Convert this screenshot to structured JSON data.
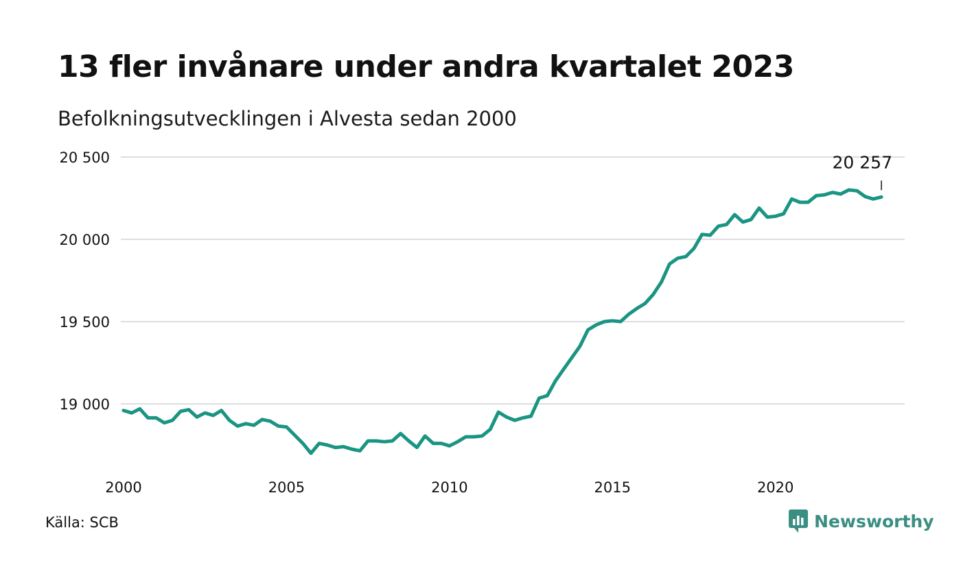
{
  "header": {
    "title": "13 fler invånare under andra kvartalet 2023",
    "subtitle": "Befolkningsutvecklingen i Alvesta sedan 2000"
  },
  "footer": {
    "source": "Källa: SCB",
    "brand": "Newsworthy"
  },
  "colors": {
    "line": "#1a9483",
    "grid": "#dddddd",
    "brand": "#3a8e82"
  },
  "chart_data": {
    "type": "line",
    "title": "13 fler invånare under andra kvartalet 2023",
    "subtitle": "Befolkningsutvecklingen i Alvesta sedan 2000",
    "xlabel": "",
    "ylabel": "",
    "xlim": [
      2000,
      2024.0
    ],
    "ylim": [
      18700,
      20500
    ],
    "x_ticks": [
      2000,
      2005,
      2010,
      2015,
      2020
    ],
    "x_tick_labels": [
      "2000",
      "2005",
      "2010",
      "2015",
      "2020"
    ],
    "y_ticks": [
      19000,
      19500,
      20000,
      20500
    ],
    "y_tick_labels": [
      "19 000",
      "19 500",
      "20 000",
      "20 500"
    ],
    "grid": true,
    "legend": "none",
    "annotation": {
      "label": "20 257",
      "x": 2023.25,
      "y": 20257
    },
    "series": [
      {
        "x": [
          2000.0,
          2000.25,
          2000.5,
          2000.75,
          2001.0,
          2001.25,
          2001.5,
          2001.75,
          2002.0,
          2002.25,
          2002.5,
          2002.75,
          2003.0,
          2003.25,
          2003.5,
          2003.75,
          2004.0,
          2004.25,
          2004.5,
          2004.75,
          2005.0,
          2005.25,
          2005.5,
          2005.75,
          2006.0,
          2006.25,
          2006.5,
          2006.75,
          2007.0,
          2007.25,
          2007.5,
          2007.75,
          2008.0,
          2008.25,
          2008.5,
          2008.75,
          2009.0,
          2009.25,
          2009.5,
          2009.75,
          2010.0,
          2010.25,
          2010.5,
          2010.75,
          2011.0,
          2011.25,
          2011.5,
          2011.75,
          2012.0,
          2012.25,
          2012.5,
          2012.75,
          2013.0,
          2013.25,
          2013.5,
          2013.75,
          2014.0,
          2014.25,
          2014.5,
          2014.75,
          2015.0,
          2015.25,
          2015.5,
          2015.75,
          2016.0,
          2016.25,
          2016.5,
          2016.75,
          2017.0,
          2017.25,
          2017.5,
          2017.75,
          2018.0,
          2018.25,
          2018.5,
          2018.75,
          2019.0,
          2019.25,
          2019.5,
          2019.75,
          2020.0,
          2020.25,
          2020.5,
          2020.75,
          2021.0,
          2021.25,
          2021.5,
          2021.75,
          2022.0,
          2022.25,
          2022.5,
          2022.75,
          2023.0,
          2023.25
        ],
        "values": [
          18960,
          18945,
          18970,
          18915,
          18915,
          18885,
          18900,
          18955,
          18965,
          18920,
          18945,
          18930,
          18960,
          18900,
          18865,
          18880,
          18870,
          18905,
          18895,
          18865,
          18860,
          18810,
          18760,
          18700,
          18760,
          18750,
          18735,
          18740,
          18725,
          18715,
          18775,
          18775,
          18770,
          18775,
          18820,
          18775,
          18735,
          18805,
          18760,
          18760,
          18745,
          18770,
          18800,
          18800,
          18805,
          18845,
          18950,
          18920,
          18900,
          18915,
          18925,
          19035,
          19050,
          19140,
          19210,
          19280,
          19350,
          19450,
          19480,
          19500,
          19505,
          19500,
          19545,
          19580,
          19610,
          19665,
          19740,
          19850,
          19885,
          19895,
          19945,
          20030,
          20025,
          20080,
          20090,
          20150,
          20105,
          20120,
          20190,
          20135,
          20140,
          20155,
          20245,
          20225,
          20225,
          20265,
          20270,
          20285,
          20275,
          20300,
          20295,
          20260,
          20245,
          20257
        ]
      }
    ]
  }
}
